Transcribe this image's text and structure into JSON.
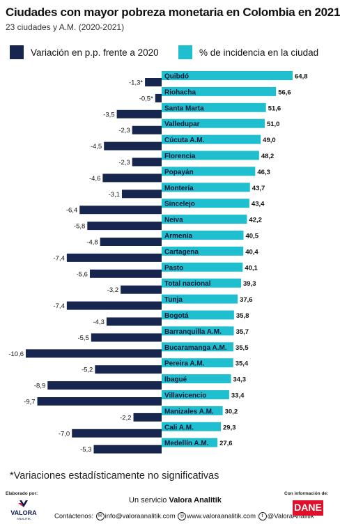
{
  "header": {
    "title": "Ciudades con mayor pobreza monetaria en Colombia en 2021",
    "subtitle": "23 ciudades y A.M. (2020-2021)"
  },
  "legend": {
    "variation": "Variación en p.p. frente a 2020",
    "incidence": "% de incidencia en la ciudad"
  },
  "colors": {
    "variation": "#16264e",
    "incidence": "#20bfd0",
    "background": "#ffffff"
  },
  "chart_data": {
    "type": "bar",
    "categories": [
      "Quibdó",
      "Riohacha",
      "Santa Marta",
      "Valledupar",
      "Cúcuta A.M.",
      "Florencia",
      "Popayán",
      "Montería",
      "Sincelejo",
      "Neiva",
      "Armenia",
      "Cartagena",
      "Pasto",
      "Total nacional",
      "Tunja",
      "Bogotá",
      "Barranquilla A.M.",
      "Bucaramanga A.M.",
      "Pereira A.M.",
      "Ibagué",
      "Villavicencio",
      "Manizales A.M.",
      "Cali A.M.",
      "Medellín A.M."
    ],
    "series": [
      {
        "name": "Variación en p.p. frente a 2020",
        "values": [
          -1.3,
          -0.5,
          -3.5,
          -2.3,
          -4.5,
          -2.3,
          -4.6,
          -3.1,
          -6.4,
          -5.8,
          -4.8,
          -7.4,
          -5.6,
          -3.2,
          -7.4,
          -4.3,
          -5.5,
          -10.6,
          -5.2,
          -8.9,
          -9.7,
          -2.2,
          -7.0,
          -5.3
        ],
        "labels": [
          "-1,3*",
          "-0,5*",
          "-3,5",
          "-2,3",
          "-4,5",
          "-2,3",
          "-4,6",
          "-3,1",
          "-6,4",
          "-5,8",
          "-4,8",
          "-7,4",
          "-5,6",
          "-3,2",
          "-7,4",
          "-4,3",
          "-5,5",
          "-10,6",
          "-5,2",
          "-8,9",
          "-9,7",
          "-2,2",
          "-7,0",
          "-5,3"
        ]
      },
      {
        "name": "% de incidencia en la ciudad",
        "values": [
          64.8,
          56.6,
          51.6,
          51.0,
          49.0,
          48.2,
          46.3,
          43.7,
          43.4,
          42.2,
          40.5,
          40.4,
          40.1,
          39.3,
          37.6,
          35.8,
          35.7,
          35.5,
          35.4,
          34.3,
          33.4,
          30.2,
          29.3,
          27.6
        ],
        "labels": [
          "64,8",
          "56,6",
          "51,6",
          "51,0",
          "49,0",
          "48,2",
          "46,3",
          "43,7",
          "43,4",
          "42,2",
          "40,5",
          "40,4",
          "40,1",
          "39,3",
          "37,6",
          "35,8",
          "35,7",
          "35,5",
          "35,4",
          "34,3",
          "33,4",
          "30,2",
          "29,3",
          "27,6"
        ]
      }
    ]
  },
  "footnote": "*Variaciones estadísticamente no significativas",
  "footer": {
    "made_by": "Elaborado por:",
    "info_by": "Con información de:",
    "service_prefix": "Un servicio",
    "service_brand": "Valora Analitik",
    "contact_label": "Contáctenos:",
    "email": "info@valoraanalitik.com",
    "web": "www.valoraanalitik.com",
    "handle": "@ValoraAnalitik",
    "logo_valora": "VALORA",
    "logo_valora_sub": "ANALITIK",
    "logo_dane": "DANE"
  }
}
